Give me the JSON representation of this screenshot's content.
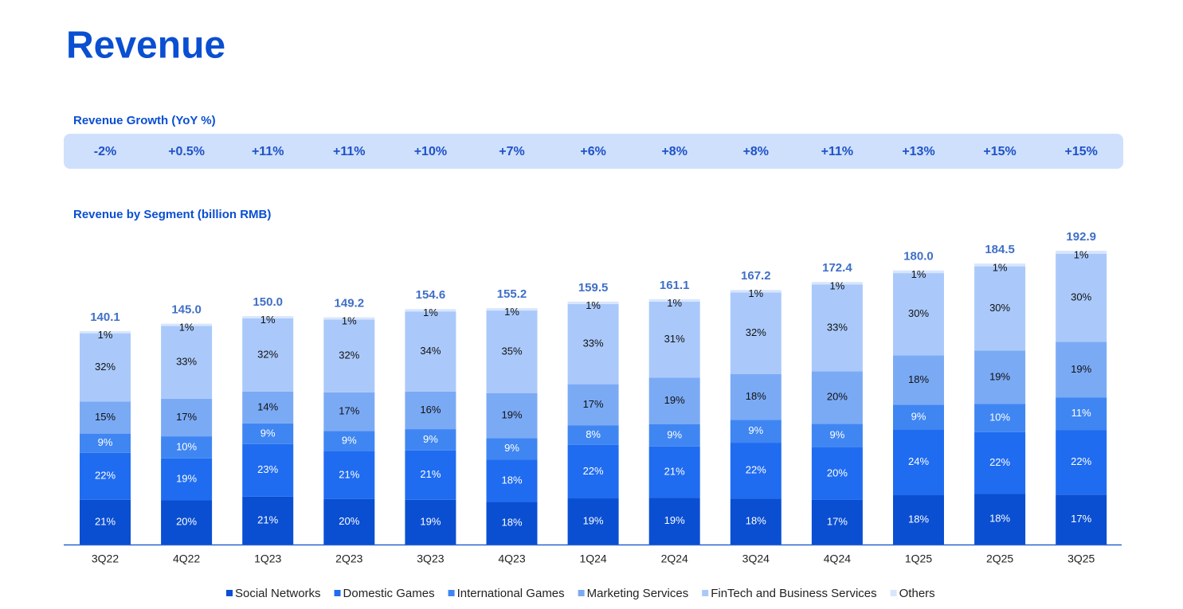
{
  "header": {
    "title": "Revenue"
  },
  "growth": {
    "title": "Revenue Growth (YoY %)",
    "values": [
      -2,
      0.5,
      11,
      11,
      10,
      7,
      6,
      8,
      8,
      11,
      13,
      15,
      15
    ],
    "value_labels": [
      "-2%",
      "+0.5%",
      "+11%",
      "+11%",
      "+10%",
      "+7%",
      "+6%",
      "+8%",
      "+8%",
      "+11%",
      "+13%",
      "+15%",
      "+15%"
    ]
  },
  "chart_data": {
    "type": "bar",
    "stacked": true,
    "title": "Revenue by Segment (billion RMB)",
    "categories": [
      "3Q22",
      "4Q22",
      "1Q23",
      "2Q23",
      "3Q23",
      "4Q23",
      "1Q24",
      "2Q24",
      "3Q24",
      "4Q24",
      "1Q25",
      "2Q25",
      "3Q25"
    ],
    "totals": {
      "values": [
        140.1,
        145.0,
        150.0,
        149.2,
        154.6,
        155.2,
        159.5,
        161.1,
        167.2,
        172.4,
        180.0,
        184.5,
        192.9
      ],
      "value_labels": [
        "140.1",
        "145.0",
        "150.0",
        "149.2",
        "154.6",
        "155.2",
        "159.5",
        "161.1",
        "167.2",
        "172.4",
        "180.0",
        "184.5",
        "192.9"
      ]
    },
    "series": [
      {
        "name": "Social Networks",
        "color": "#0a4fd2",
        "values": [
          21,
          20,
          21,
          20,
          19,
          18,
          19,
          19,
          18,
          17,
          18,
          18,
          17
        ],
        "value_labels": [
          "21%",
          "20%",
          "21%",
          "20%",
          "19%",
          "18%",
          "19%",
          "19%",
          "18%",
          "17%",
          "18%",
          "18%",
          "17%"
        ]
      },
      {
        "name": "Domestic Games",
        "color": "#1f6cf0",
        "values": [
          22,
          19,
          23,
          21,
          21,
          18,
          22,
          21,
          22,
          20,
          24,
          22,
          22
        ],
        "value_labels": [
          "22%",
          "19%",
          "23%",
          "21%",
          "21%",
          "18%",
          "22%",
          "21%",
          "22%",
          "20%",
          "24%",
          "22%",
          "22%"
        ]
      },
      {
        "name": "International Games",
        "color": "#3f86f2",
        "values": [
          9,
          10,
          9,
          9,
          9,
          9,
          8,
          9,
          9,
          9,
          9,
          10,
          11
        ],
        "value_labels": [
          "9%",
          "10%",
          "9%",
          "9%",
          "9%",
          "9%",
          "8%",
          "9%",
          "9%",
          "9%",
          "9%",
          "10%",
          "11%"
        ]
      },
      {
        "name": "Marketing Services",
        "color": "#7baaf5",
        "values": [
          15,
          17,
          14,
          17,
          16,
          19,
          17,
          19,
          18,
          20,
          18,
          19,
          19
        ],
        "value_labels": [
          "15%",
          "17%",
          "14%",
          "17%",
          "16%",
          "19%",
          "17%",
          "19%",
          "18%",
          "20%",
          "18%",
          "19%",
          "19%"
        ]
      },
      {
        "name": "FinTech and Business Services",
        "color": "#aac9fa",
        "values": [
          32,
          33,
          32,
          32,
          34,
          35,
          33,
          31,
          32,
          33,
          30,
          30,
          30
        ],
        "value_labels": [
          "32%",
          "33%",
          "32%",
          "32%",
          "34%",
          "35%",
          "33%",
          "31%",
          "32%",
          "33%",
          "30%",
          "30%",
          "30%"
        ]
      },
      {
        "name": "Others",
        "color": "#d8e6fd",
        "values": [
          1,
          1,
          1,
          1,
          1,
          1,
          1,
          1,
          1,
          1,
          1,
          1,
          1
        ],
        "value_labels": [
          "1%",
          "1%",
          "1%",
          "1%",
          "1%",
          "1%",
          "1%",
          "1%",
          "1%",
          "1%",
          "1%",
          "1%",
          "1%"
        ]
      }
    ]
  }
}
